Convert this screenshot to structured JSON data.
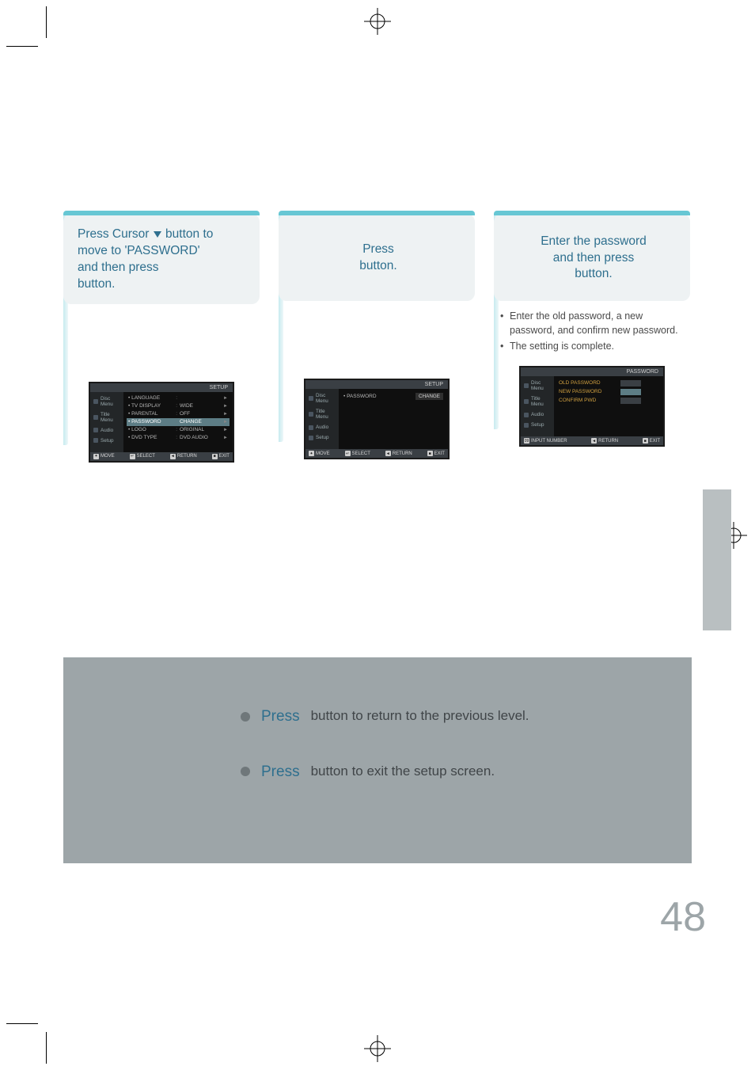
{
  "colors": {
    "teal_bar": "#67c7d4",
    "card_bg": "#eef2f3",
    "card_text": "#2e6f8e",
    "body_text": "#4a4a4a",
    "panel_bg": "#9da5a8",
    "panel_text": "#404548",
    "side_tab": "#b9bfc1",
    "page_num": "#9da5a8",
    "osd_bg": "#1a1a1a",
    "osd_chrome": "#3a3f44",
    "osd_hl": "#5d7d85",
    "osd_amber": "#d0a040"
  },
  "typography": {
    "card_fontsize_pt": 12,
    "bullet_fontsize_pt": 9,
    "panel_fontsize_pt": 13,
    "page_num_fontsize_pt": 40
  },
  "step1": {
    "card_line1": "Press Cursor ",
    "card_line1_after": " button to",
    "card_line2": "move to 'PASSWORD'",
    "card_line3": "and then press",
    "card_line4": "button."
  },
  "step2": {
    "card_line1": "Press",
    "card_line2": "button."
  },
  "step3": {
    "card_line1": "Enter the password",
    "card_line2": "and then press",
    "card_line3": "button."
  },
  "step3_bullets": [
    "Enter the old password, a new password, and confirm new password.",
    "The setting is complete."
  ],
  "osd_common": {
    "brand": "",
    "title_setup": "SETUP",
    "title_password": "PASSWORD",
    "side_items": [
      "Disc Menu",
      "Title Menu",
      "Audio",
      "Setup"
    ],
    "foot_move": "MOVE",
    "foot_select": "SELECT",
    "foot_return": "RETURN",
    "foot_exit": "EXIT",
    "foot_input_number": "INPUT NUMBER"
  },
  "osd1_rows": [
    {
      "label": "LANGUAGE",
      "value": "",
      "arrow": true
    },
    {
      "label": "TV DISPLAY",
      "value": "WIDE",
      "arrow": true
    },
    {
      "label": "PARENTAL",
      "value": "OFF",
      "arrow": true
    },
    {
      "label": "PASSWORD",
      "value": "CHANGE",
      "arrow": true,
      "highlight": true
    },
    {
      "label": "LOGO",
      "value": "ORIGINAL",
      "arrow": true
    },
    {
      "label": "DVD TYPE",
      "value": "DVD AUDIO",
      "arrow": true
    }
  ],
  "osd2_rows": [
    {
      "label": "PASSWORD",
      "value_box": "CHANGE"
    }
  ],
  "osd3_rows": [
    {
      "label": "OLD PASSWORD",
      "box": true
    },
    {
      "label": "NEW PASSWORD",
      "box": true,
      "hl_box": true
    },
    {
      "label": "CONFIRM PWD",
      "box": true
    }
  ],
  "lower": {
    "row1_press": "Press",
    "row1_rest": "button to return to the previous level.",
    "row2_press": "Press",
    "row2_rest": "button to exit the setup screen."
  },
  "page_number": "48"
}
